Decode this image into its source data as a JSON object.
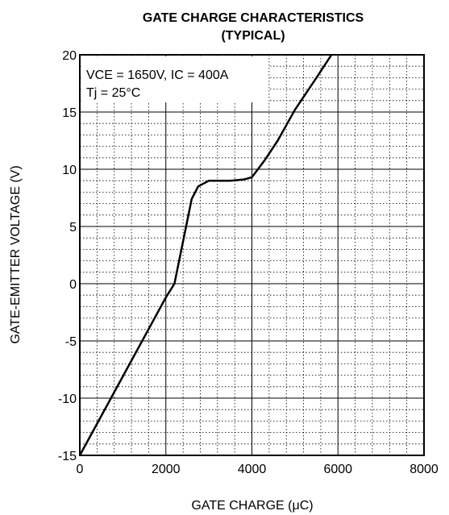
{
  "chart_data": {
    "type": "line",
    "title": "GATE CHARGE CHARACTERISTICS",
    "subtitle": "(TYPICAL)",
    "xlabel": "GATE CHARGE (μC)",
    "ylabel": "GATE-EMITTER VOLTAGE (V)",
    "xlim": [
      0,
      8000
    ],
    "ylim": [
      -15,
      20
    ],
    "x_ticks": [
      0,
      2000,
      4000,
      6000,
      8000
    ],
    "y_ticks": [
      -15,
      -10,
      -5,
      0,
      5,
      10,
      15,
      20
    ],
    "x_tick_labels": [
      "0",
      "2000",
      "4000",
      "6000",
      "8000"
    ],
    "y_tick_labels": [
      "-15",
      "-10",
      "-5",
      "0",
      "5",
      "10",
      "15",
      "20"
    ],
    "grid": true,
    "annotations": [
      "VCE = 1650V, IC = 400A",
      "Tj = 25°C"
    ],
    "series": [
      {
        "x": [
          0,
          2000,
          2200,
          2600,
          2750,
          3000,
          3500,
          3800,
          3900,
          4000,
          4300,
          4600,
          5000,
          5500,
          5850
        ],
        "y": [
          -15,
          -1.2,
          0,
          7.4,
          8.5,
          9.0,
          9.0,
          9.1,
          9.2,
          9.3,
          10.8,
          12.5,
          15.2,
          18.0,
          20.0
        ]
      }
    ]
  }
}
